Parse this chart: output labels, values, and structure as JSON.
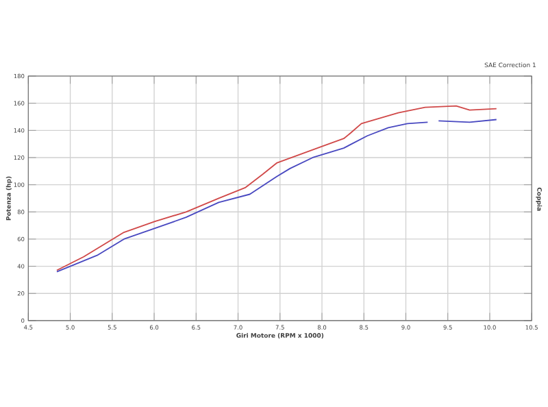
{
  "chart_data": {
    "type": "line",
    "xlabel": "Giri Motore (RPM x 1000)",
    "ylabel": "Potenza (hp)",
    "y2label": "Coppia",
    "annotations": [
      "SAE Correction 1"
    ],
    "xlim": [
      4.5,
      10.5
    ],
    "ylim": [
      0,
      180
    ],
    "xticks": [
      4.5,
      {
        "value": 5,
        "label": "5.0"
      },
      5.5,
      {
        "value": 6,
        "label": "6.0"
      },
      6.5,
      {
        "value": 7,
        "label": "7.0"
      },
      7.5,
      {
        "value": 8,
        "label": "8.0"
      },
      8.5,
      {
        "value": 9,
        "label": "9.0"
      },
      9.5,
      {
        "value": 10,
        "label": "10.0"
      },
      10.5
    ],
    "yticks": [
      0,
      20,
      40,
      60,
      80,
      100,
      120,
      140,
      160,
      180
    ],
    "grid": true,
    "marker": "none",
    "line_style": "solid",
    "series": [
      {
        "color": "#d04848",
        "x": [
          4.84,
          5.16,
          5.64,
          6.01,
          6.38,
          6.77,
          7.09,
          7.3,
          7.46,
          7.99,
          8.26,
          8.34,
          8.47,
          8.91,
          9.23,
          9.6,
          9.76,
          10.08
        ],
        "values": [
          37,
          47,
          65,
          73,
          80,
          90,
          98,
          108,
          116,
          128,
          134,
          138,
          145,
          153,
          157,
          158,
          155,
          156
        ]
      },
      {
        "color": "#4848c0",
        "x": [
          4.84,
          5.32,
          5.64,
          6.01,
          6.38,
          6.77,
          7.14,
          7.46,
          7.62,
          7.89,
          8.26,
          8.54,
          8.79,
          9.02,
          9.26,
          9.32,
          9.39,
          9.76,
          10.08
        ],
        "values": [
          36,
          48,
          60,
          68,
          76,
          87,
          93,
          106,
          112,
          120,
          127,
          136,
          142,
          145,
          146,
          null,
          147,
          146,
          148
        ]
      }
    ]
  }
}
